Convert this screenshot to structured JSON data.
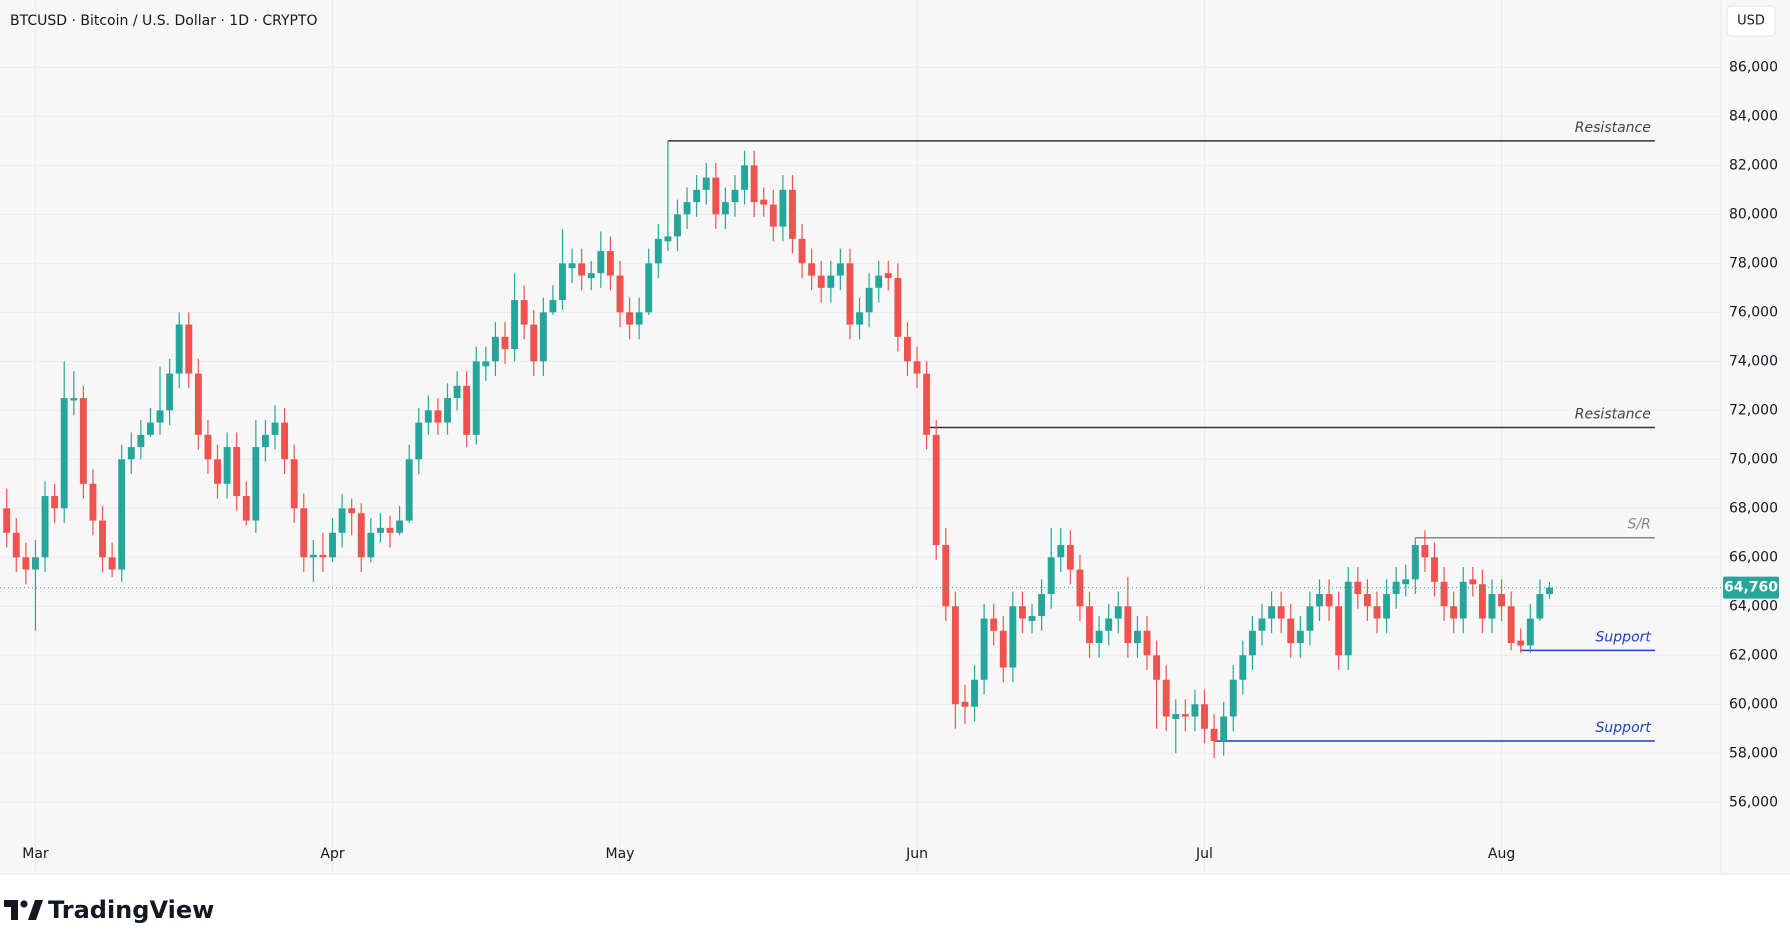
{
  "header": {
    "title": "BTCUSD · Bitcoin / U.S. Dollar · 1D · CRYPTO",
    "currency": "USD"
  },
  "footer": {
    "brand": "TradingView"
  },
  "chart_data": {
    "type": "candlestick",
    "up_color": "#26a69a",
    "down_color": "#ef5350",
    "grid": true,
    "xlim": [
      -0.7,
      178.9
    ],
    "xticks": [
      {
        "value": 3,
        "label": "Mar"
      },
      {
        "value": 34,
        "label": "Apr"
      },
      {
        "value": 64,
        "label": "May"
      },
      {
        "value": 95,
        "label": "Jun"
      },
      {
        "value": 125,
        "label": "Jul"
      },
      {
        "value": 156,
        "label": "Aug"
      }
    ],
    "ylim": [
      54500,
      88750
    ],
    "yticks": [
      {
        "value": 56000,
        "label": "56,000"
      },
      {
        "value": 58000,
        "label": "58,000"
      },
      {
        "value": 60000,
        "label": "60,000"
      },
      {
        "value": 62000,
        "label": "62,000"
      },
      {
        "value": 64000,
        "label": "64,000"
      },
      {
        "value": 66000,
        "label": "66,000"
      },
      {
        "value": 68000,
        "label": "68,000"
      },
      {
        "value": 70000,
        "label": "70,000"
      },
      {
        "value": 72000,
        "label": "72,000"
      },
      {
        "value": 74000,
        "label": "74,000"
      },
      {
        "value": 76000,
        "label": "76,000"
      },
      {
        "value": 78000,
        "label": "78,000"
      },
      {
        "value": 80000,
        "label": "80,000"
      },
      {
        "value": 82000,
        "label": "82,000"
      },
      {
        "value": 84000,
        "label": "84,000"
      },
      {
        "value": 86000,
        "label": "86,000"
      }
    ],
    "last_price": {
      "value": 64760,
      "label": "64,760"
    },
    "annotations": [
      {
        "text": "Resistance",
        "value": 83000,
        "x0": 69,
        "x1": 172,
        "color": "#333333"
      },
      {
        "text": "Resistance",
        "value": 71300,
        "x0": 96,
        "x1": 172,
        "color": "#333333"
      },
      {
        "text": "S/R",
        "value": 66800,
        "x0": 147,
        "x1": 172,
        "color": "#888888"
      },
      {
        "text": "Support",
        "value": 62200,
        "x0": 158,
        "x1": 172,
        "color": "#1f3fc4"
      },
      {
        "text": "Support",
        "value": 58500,
        "x0": 126,
        "x1": 172,
        "color": "#1f3fc4"
      }
    ],
    "candles": [
      [
        68000,
        68800,
        66400,
        67000
      ],
      [
        67000,
        67600,
        65400,
        66000
      ],
      [
        66000,
        66600,
        64900,
        65500
      ],
      [
        65500,
        66700,
        63000,
        66000
      ],
      [
        66000,
        69100,
        65400,
        68500
      ],
      [
        68500,
        69000,
        67400,
        68000
      ],
      [
        68000,
        74000,
        67400,
        72500
      ],
      [
        72400,
        73600,
        71800,
        72500
      ],
      [
        72500,
        73000,
        68400,
        69000
      ],
      [
        69000,
        69600,
        66900,
        67500
      ],
      [
        67500,
        68100,
        65400,
        66000
      ],
      [
        66000,
        66600,
        65200,
        65500
      ],
      [
        65500,
        70600,
        65000,
        70000
      ],
      [
        70000,
        71100,
        69400,
        70500
      ],
      [
        70500,
        71600,
        70000,
        71000
      ],
      [
        71000,
        72100,
        70900,
        71500
      ],
      [
        71500,
        73800,
        71000,
        72000
      ],
      [
        72000,
        74100,
        71400,
        73500
      ],
      [
        73500,
        76000,
        72900,
        75500
      ],
      [
        75500,
        76000,
        72900,
        73500
      ],
      [
        73500,
        74100,
        70400,
        71000
      ],
      [
        71000,
        71600,
        69400,
        70000
      ],
      [
        70000,
        70600,
        68400,
        69000
      ],
      [
        69000,
        71100,
        68400,
        70500
      ],
      [
        70500,
        71100,
        67900,
        68500
      ],
      [
        68500,
        69100,
        67300,
        67500
      ],
      [
        67500,
        71600,
        67000,
        70500
      ],
      [
        70500,
        71600,
        69900,
        71000
      ],
      [
        71000,
        72200,
        70400,
        71500
      ],
      [
        71500,
        72100,
        69400,
        70000
      ],
      [
        70000,
        70600,
        67400,
        68000
      ],
      [
        68000,
        68600,
        65400,
        66000
      ],
      [
        66000,
        66700,
        65000,
        66100
      ],
      [
        66100,
        67000,
        65400,
        66000
      ],
      [
        66000,
        67600,
        65800,
        67000
      ],
      [
        67000,
        68600,
        66400,
        68000
      ],
      [
        68000,
        68400,
        66900,
        67800
      ],
      [
        67800,
        68200,
        65400,
        66000
      ],
      [
        66000,
        67600,
        65800,
        67000
      ],
      [
        67000,
        67800,
        66600,
        67200
      ],
      [
        67200,
        67700,
        66400,
        67000
      ],
      [
        67000,
        68100,
        66900,
        67500
      ],
      [
        67500,
        70600,
        67400,
        70000
      ],
      [
        70000,
        72100,
        69400,
        71500
      ],
      [
        71500,
        72600,
        71000,
        72000
      ],
      [
        72000,
        72500,
        71000,
        71500
      ],
      [
        71500,
        73100,
        71000,
        72500
      ],
      [
        72500,
        73600,
        72000,
        73000
      ],
      [
        73000,
        73600,
        70500,
        71000
      ],
      [
        71000,
        74600,
        70600,
        74000
      ],
      [
        73800,
        74600,
        73200,
        74000
      ],
      [
        74000,
        75600,
        73400,
        75000
      ],
      [
        75000,
        75600,
        73900,
        74500
      ],
      [
        74500,
        77600,
        74000,
        76500
      ],
      [
        76500,
        77100,
        74900,
        75500
      ],
      [
        75500,
        76100,
        73400,
        74000
      ],
      [
        74000,
        76600,
        73400,
        76000
      ],
      [
        76000,
        77100,
        75900,
        76500
      ],
      [
        76500,
        79400,
        76100,
        78000
      ],
      [
        77800,
        78600,
        77200,
        78000
      ],
      [
        78000,
        78600,
        76900,
        77500
      ],
      [
        77400,
        78100,
        76900,
        77600
      ],
      [
        77600,
        79300,
        77000,
        78500
      ],
      [
        78500,
        79100,
        76900,
        77500
      ],
      [
        77500,
        78100,
        75400,
        76000
      ],
      [
        76000,
        76600,
        74900,
        75500
      ],
      [
        75500,
        76600,
        74900,
        76000
      ],
      [
        76000,
        78600,
        75900,
        78000
      ],
      [
        78000,
        79600,
        77400,
        79000
      ],
      [
        78900,
        83000,
        78500,
        79100
      ],
      [
        79100,
        80600,
        78500,
        80000
      ],
      [
        80000,
        81100,
        79400,
        80500
      ],
      [
        80500,
        81600,
        79900,
        81000
      ],
      [
        81000,
        82100,
        80400,
        81500
      ],
      [
        81500,
        82100,
        79400,
        80000
      ],
      [
        80000,
        81100,
        79400,
        80500
      ],
      [
        80500,
        81600,
        79900,
        81000
      ],
      [
        81000,
        82600,
        80400,
        82000
      ],
      [
        82000,
        82600,
        79900,
        80500
      ],
      [
        80600,
        81100,
        79900,
        80400
      ],
      [
        80400,
        81000,
        78900,
        79500
      ],
      [
        79500,
        81600,
        78900,
        81000
      ],
      [
        81000,
        81600,
        78400,
        79000
      ],
      [
        79000,
        79600,
        77400,
        78000
      ],
      [
        78000,
        78600,
        76900,
        77500
      ],
      [
        77500,
        78100,
        76400,
        77000
      ],
      [
        77000,
        78100,
        76400,
        77500
      ],
      [
        77500,
        78600,
        76900,
        78000
      ],
      [
        78000,
        78600,
        74900,
        75500
      ],
      [
        75500,
        76600,
        74900,
        76000
      ],
      [
        76000,
        77600,
        75400,
        77000
      ],
      [
        77000,
        78100,
        76400,
        77500
      ],
      [
        77600,
        78100,
        76900,
        77400
      ],
      [
        77400,
        78000,
        74400,
        75000
      ],
      [
        75000,
        75600,
        73400,
        74000
      ],
      [
        74000,
        74600,
        72900,
        73500
      ],
      [
        73500,
        74000,
        70400,
        71000
      ],
      [
        71000,
        71600,
        65900,
        66500
      ],
      [
        66500,
        67200,
        63400,
        64000
      ],
      [
        64000,
        64600,
        59000,
        60000
      ],
      [
        60100,
        60800,
        59200,
        59900
      ],
      [
        59900,
        61600,
        59300,
        61000
      ],
      [
        61000,
        64100,
        60400,
        63500
      ],
      [
        63500,
        64100,
        62400,
        63000
      ],
      [
        63000,
        63600,
        60900,
        61500
      ],
      [
        61500,
        64600,
        60900,
        64000
      ],
      [
        64000,
        64600,
        62900,
        63500
      ],
      [
        63400,
        64100,
        62900,
        63600
      ],
      [
        63600,
        65100,
        63000,
        64500
      ],
      [
        64500,
        67200,
        63900,
        66000
      ],
      [
        66000,
        67200,
        65400,
        66500
      ],
      [
        66500,
        67100,
        64900,
        65500
      ],
      [
        65500,
        66100,
        63400,
        64000
      ],
      [
        64000,
        64600,
        61900,
        62500
      ],
      [
        62500,
        63600,
        61900,
        63000
      ],
      [
        63000,
        64100,
        62400,
        63500
      ],
      [
        63500,
        64600,
        62900,
        64000
      ],
      [
        64000,
        65200,
        61900,
        62500
      ],
      [
        62500,
        63600,
        61900,
        63000
      ],
      [
        63000,
        63600,
        61400,
        62000
      ],
      [
        62000,
        62600,
        59000,
        61000
      ],
      [
        61000,
        61600,
        58900,
        59500
      ],
      [
        59400,
        60200,
        58000,
        59600
      ],
      [
        59600,
        60200,
        58900,
        59500
      ],
      [
        59500,
        60600,
        58900,
        60000
      ],
      [
        60000,
        60600,
        58400,
        59000
      ],
      [
        59000,
        59600,
        57800,
        58500
      ],
      [
        58500,
        60100,
        57900,
        59500
      ],
      [
        59500,
        61600,
        58900,
        61000
      ],
      [
        61000,
        62600,
        60400,
        62000
      ],
      [
        62000,
        63600,
        61400,
        63000
      ],
      [
        63000,
        64100,
        62400,
        63500
      ],
      [
        63500,
        64600,
        62900,
        64000
      ],
      [
        64000,
        64600,
        62900,
        63500
      ],
      [
        63500,
        64100,
        61900,
        62500
      ],
      [
        62500,
        63600,
        61900,
        63000
      ],
      [
        63000,
        64600,
        62400,
        64000
      ],
      [
        64000,
        65100,
        63400,
        64500
      ],
      [
        64500,
        65100,
        63400,
        64000
      ],
      [
        64000,
        64600,
        61400,
        62000
      ],
      [
        62000,
        65600,
        61400,
        65000
      ],
      [
        65000,
        65600,
        63900,
        64500
      ],
      [
        64500,
        65100,
        63400,
        64000
      ],
      [
        64000,
        64600,
        62900,
        63500
      ],
      [
        63500,
        65100,
        62900,
        64500
      ],
      [
        64500,
        65600,
        63900,
        65000
      ],
      [
        64900,
        65700,
        64400,
        65100
      ],
      [
        65100,
        66800,
        64500,
        66500
      ],
      [
        66500,
        67100,
        65400,
        66000
      ],
      [
        66000,
        66600,
        64400,
        65000
      ],
      [
        65000,
        65600,
        63400,
        64000
      ],
      [
        64000,
        64600,
        62900,
        63500
      ],
      [
        63500,
        65600,
        62900,
        65000
      ],
      [
        65100,
        65600,
        64400,
        64900
      ],
      [
        64900,
        65500,
        62900,
        63500
      ],
      [
        63500,
        65100,
        62900,
        64500
      ],
      [
        64500,
        65100,
        63400,
        64000
      ],
      [
        64000,
        64600,
        62200,
        62500
      ],
      [
        62600,
        63100,
        62100,
        62400
      ],
      [
        62400,
        64100,
        62100,
        63500
      ],
      [
        63500,
        65100,
        63400,
        64500
      ],
      [
        64500,
        65000,
        64300,
        64760
      ]
    ]
  }
}
